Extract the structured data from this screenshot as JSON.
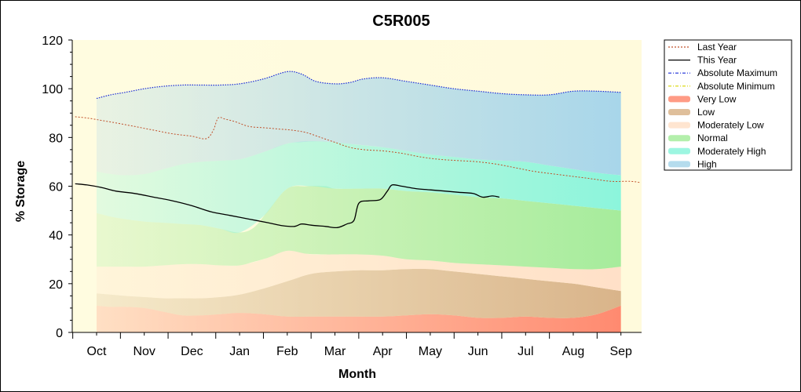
{
  "chart_data": {
    "type": "area",
    "title": "C5R005",
    "xlabel": "Month",
    "ylabel": "% Storage",
    "ylim": [
      0,
      120
    ],
    "yticks": [
      0,
      20,
      40,
      60,
      80,
      100,
      120
    ],
    "months": [
      "Oct",
      "Nov",
      "Dec",
      "Jan",
      "Feb",
      "Mar",
      "Apr",
      "May",
      "Jun",
      "Jul",
      "Aug",
      "Sep"
    ],
    "legend_position": "right",
    "bands": [
      {
        "name": "Very Low",
        "color": "#ff8a70",
        "x": [
          0,
          0.3,
          0.6,
          1.0,
          1.4,
          1.8,
          2.2,
          2.6,
          3.0,
          3.5,
          4.0,
          4.5,
          5.0,
          5.5,
          6.0,
          6.5,
          7.0,
          7.5,
          8.0,
          8.5,
          9.0,
          9.5,
          10.0,
          10.5,
          11.0
        ],
        "lower": [
          0,
          0,
          0,
          0,
          0,
          0,
          0,
          0,
          0,
          0,
          0,
          0,
          0,
          0,
          0,
          0,
          0,
          0,
          0,
          0,
          0,
          0,
          0,
          0,
          0
        ],
        "upper": [
          11,
          10.5,
          10.5,
          10,
          8.5,
          7,
          7,
          7.5,
          8,
          7.5,
          6.5,
          6.5,
          6.5,
          6.5,
          6.5,
          7,
          7.5,
          7,
          6,
          6,
          6.5,
          6,
          6,
          7.5,
          11
        ]
      },
      {
        "name": "Low",
        "color": "#d9b48a",
        "x": [
          0,
          0.3,
          0.6,
          1.0,
          1.4,
          1.8,
          2.2,
          2.6,
          3.0,
          3.5,
          4.0,
          4.5,
          5.0,
          5.5,
          6.0,
          6.5,
          7.0,
          7.5,
          8.0,
          8.5,
          9.0,
          9.5,
          10.0,
          10.5,
          11.0
        ],
        "upper": [
          16,
          15.5,
          15,
          14.5,
          14,
          14,
          14,
          14.5,
          15.5,
          18,
          21,
          24,
          25,
          25.5,
          25.5,
          26,
          26,
          25,
          24,
          23,
          22,
          21,
          20,
          18.5,
          17
        ]
      },
      {
        "name": "Moderately Low",
        "color": "#ffe0c8",
        "x": [
          0,
          0.3,
          0.6,
          1.0,
          1.4,
          1.8,
          2.2,
          2.6,
          3.0,
          3.5,
          4.0,
          4.5,
          5.0,
          5.5,
          6.0,
          6.5,
          7.0,
          7.5,
          8.0,
          8.5,
          9.0,
          9.5,
          10.0,
          10.5,
          11.0
        ],
        "upper": [
          27,
          27,
          27,
          27,
          27.5,
          28,
          28,
          27.5,
          27.5,
          30,
          33.5,
          32,
          32,
          32,
          31.5,
          30,
          29.5,
          28.5,
          28,
          27.5,
          27,
          26.5,
          26,
          26,
          27
        ]
      },
      {
        "name": "Normal",
        "color": "#a6ec9c",
        "x": [
          0,
          0.3,
          0.6,
          1.0,
          1.4,
          1.8,
          2.2,
          2.6,
          3.0,
          3.3,
          3.6,
          4.0,
          4.4,
          4.8,
          5.0,
          5.5,
          6.0,
          6.5,
          7.0,
          7.5,
          8.0,
          8.5,
          9.0,
          9.5,
          10.0,
          10.5,
          11.0
        ],
        "upper": [
          49,
          47.5,
          46.5,
          45.5,
          45,
          44.5,
          44,
          42.5,
          41,
          43,
          50,
          59,
          60,
          60,
          59,
          59,
          59,
          58,
          57.5,
          56.5,
          55.5,
          55,
          54,
          53,
          52,
          51,
          50
        ]
      },
      {
        "name": "Moderately High",
        "color": "#8cf5dc",
        "x": [
          0,
          0.3,
          0.6,
          1.0,
          1.4,
          1.8,
          2.2,
          2.6,
          3.0,
          3.5,
          4.0,
          4.5,
          5.0,
          5.5,
          6.0,
          6.5,
          7.0,
          7.5,
          8.0,
          8.5,
          9.0,
          9.5,
          10.0,
          10.5,
          11.0
        ],
        "upper": [
          66,
          65,
          64.5,
          65,
          67,
          69,
          70,
          70.5,
          71,
          74,
          77.5,
          78.5,
          78,
          77,
          76,
          74.5,
          73,
          72,
          71,
          70.5,
          70,
          68.5,
          67,
          65.5,
          64.5
        ]
      },
      {
        "name": "High",
        "color": "#a8d6ea",
        "x": [
          0,
          0.3,
          0.6,
          1.0,
          1.4,
          1.8,
          2.2,
          2.6,
          3.0,
          3.5,
          4.0,
          4.3,
          4.6,
          5.0,
          5.3,
          5.6,
          6.0,
          6.5,
          7.0,
          7.5,
          8.0,
          8.5,
          9.0,
          9.5,
          10.0,
          10.5,
          11.0
        ],
        "upper": [
          96,
          97.5,
          98.5,
          100,
          101,
          101.5,
          101.5,
          101.5,
          102,
          104,
          107,
          106,
          103,
          102,
          102.5,
          104,
          104.5,
          103,
          101.5,
          100,
          99,
          98,
          97.5,
          97.5,
          99,
          99,
          98.5
        ]
      }
    ],
    "series": [
      {
        "name": "Last Year",
        "color": "#c0502a",
        "dash": "dot",
        "x": [
          -0.45,
          -0.2,
          0.1,
          0.4,
          0.8,
          1.2,
          1.6,
          2.0,
          2.3,
          2.45,
          2.55,
          2.7,
          2.9,
          3.2,
          3.5,
          3.8,
          4.1,
          4.4,
          4.7,
          5.0,
          5.3,
          5.6,
          6.0,
          6.4,
          6.8,
          7.2,
          7.6,
          8.0,
          8.4,
          8.8,
          9.2,
          9.6,
          10.0,
          10.4,
          10.8,
          11.2,
          11.4
        ],
        "y": [
          88.5,
          88,
          87,
          86,
          84.5,
          83,
          81.5,
          80.5,
          79.5,
          83,
          88,
          87.5,
          86.5,
          84.5,
          84,
          83.5,
          83,
          82,
          80,
          78,
          76,
          75,
          74.5,
          73.5,
          72,
          71,
          70.5,
          70,
          69,
          67.5,
          66,
          65,
          64,
          63,
          62,
          62,
          61.5
        ]
      },
      {
        "name": "This Year",
        "color": "#000000",
        "dash": "solid",
        "x": [
          -0.45,
          -0.2,
          0.1,
          0.4,
          0.8,
          1.2,
          1.6,
          2.0,
          2.4,
          2.8,
          3.2,
          3.6,
          3.9,
          4.15,
          4.3,
          4.5,
          4.8,
          5.05,
          5.25,
          5.4,
          5.5,
          5.7,
          5.95,
          6.1,
          6.2,
          6.4,
          6.7,
          7.0,
          7.3,
          7.6,
          7.9,
          8.1,
          8.3,
          8.45
        ],
        "y": [
          61,
          60.5,
          59.5,
          58,
          57,
          55.5,
          54,
          52,
          49.5,
          48,
          46.5,
          45,
          43.8,
          43.5,
          44.5,
          44,
          43.5,
          43,
          44.5,
          46,
          53,
          54,
          54.5,
          58,
          60.5,
          60,
          59,
          58.5,
          58,
          57.5,
          57,
          55.5,
          56,
          55.5
        ]
      },
      {
        "name": "Absolute Maximum",
        "color": "#1a2bd6",
        "dash": "dashdot",
        "x": [],
        "y": []
      },
      {
        "name": "Absolute Minimum",
        "color": "#d8d600",
        "dash": "dashdot",
        "x": [],
        "y": []
      }
    ],
    "legend": [
      "Last Year",
      "This Year",
      "Absolute Maximum",
      "Absolute Minimum",
      "Very Low",
      "Low",
      "Moderately Low",
      "Normal",
      "Moderately High",
      "High"
    ],
    "grid": false
  }
}
